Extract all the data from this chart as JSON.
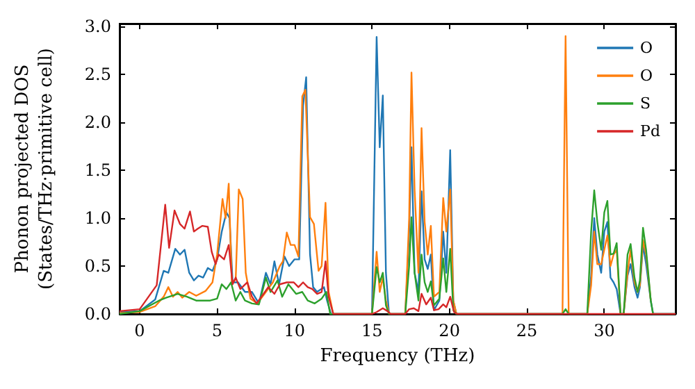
{
  "chart_data": {
    "type": "line",
    "xlabel": "Frequency (THz)",
    "ylabel": "Phonon projected DOS\n(States/THz·primitive cell)",
    "xlim": [
      -1.3,
      34.6
    ],
    "ylim": [
      0,
      3.03
    ],
    "xticks": [
      0,
      5,
      10,
      15,
      20,
      25,
      30
    ],
    "yticks": [
      {
        "value": 0,
        "label": "0.0"
      },
      0.5,
      {
        "value": 1,
        "label": "1.0"
      },
      1.5,
      {
        "value": 2,
        "label": "2.0"
      },
      2.5,
      {
        "value": 3,
        "label": "3.0"
      }
    ],
    "grid": false,
    "legend": "top right",
    "marker": "none",
    "line_style": "solid",
    "series": [
      {
        "name": "O",
        "color": "#1f77b4",
        "x": [
          -1.3,
          0,
          1,
          1.55,
          1.85,
          2.3,
          2.6,
          2.9,
          3.2,
          3.5,
          3.8,
          4.1,
          4.4,
          4.7,
          5.0,
          5.3,
          5.6,
          5.8,
          6.0,
          6.35,
          6.8,
          7.25,
          7.7,
          8.15,
          8.45,
          8.7,
          9.0,
          9.35,
          9.65,
          10.0,
          10.3,
          10.55,
          10.75,
          11.0,
          11.2,
          11.45,
          11.9,
          12.1,
          12.35,
          15.0,
          15.3,
          15.5,
          15.7,
          15.9,
          16.1,
          17.15,
          17.4,
          17.55,
          17.75,
          18.0,
          18.2,
          18.4,
          18.6,
          18.8,
          19.0,
          19.35,
          19.6,
          19.8,
          20.05,
          20.25,
          20.45,
          27.3,
          27.5,
          27.7,
          28.9,
          29.15,
          29.35,
          29.55,
          29.8,
          30.0,
          30.2,
          30.4,
          30.6,
          30.8,
          31.05,
          31.25,
          31.5,
          31.7,
          31.95,
          32.15,
          32.3,
          32.5,
          32.7,
          33.0,
          33.15,
          34.6
        ],
        "values": [
          0.02,
          0.03,
          0.15,
          0.45,
          0.43,
          0.68,
          0.62,
          0.67,
          0.43,
          0.35,
          0.4,
          0.38,
          0.48,
          0.45,
          0.57,
          0.86,
          1.06,
          1.0,
          0.33,
          0.33,
          0.23,
          0.23,
          0.11,
          0.43,
          0.31,
          0.55,
          0.31,
          0.6,
          0.5,
          0.57,
          0.57,
          2.17,
          2.47,
          0.62,
          0.28,
          0.23,
          0.28,
          0.14,
          0,
          0,
          2.89,
          1.74,
          2.28,
          0.43,
          0,
          0,
          0.86,
          1.74,
          0.43,
          0.23,
          1.28,
          0.57,
          0.47,
          0.62,
          0.04,
          0.14,
          0.86,
          0.43,
          1.71,
          0.14,
          0,
          0,
          null,
          0,
          0,
          0.4,
          1.0,
          0.62,
          0.43,
          0.86,
          0.96,
          0.38,
          0.33,
          0.26,
          0,
          0,
          0.4,
          0.52,
          0.28,
          0.17,
          0.28,
          0.72,
          0.52,
          0.14,
          0,
          0
        ]
      },
      {
        "name": "O",
        "color": "#ff7f0e",
        "x": [
          -1.3,
          0,
          1,
          1.55,
          1.85,
          2.15,
          2.45,
          2.75,
          3.2,
          3.65,
          4.25,
          4.7,
          5.0,
          5.35,
          5.55,
          5.75,
          5.95,
          6.2,
          6.4,
          6.65,
          6.85,
          7.15,
          7.6,
          8.15,
          8.6,
          9.05,
          9.25,
          9.5,
          9.75,
          10.0,
          10.25,
          10.5,
          10.7,
          11.0,
          11.25,
          11.55,
          11.75,
          12.0,
          12.2,
          12.5,
          15.0,
          15.3,
          15.5,
          15.7,
          15.9,
          16.1,
          17.15,
          17.4,
          17.55,
          17.75,
          18.0,
          18.2,
          18.4,
          18.6,
          18.8,
          19.0,
          19.35,
          19.6,
          19.8,
          20.05,
          20.25,
          20.45,
          27.3,
          27.5,
          27.7,
          28.9,
          29.15,
          29.35,
          29.55,
          29.8,
          30.0,
          30.2,
          30.4,
          30.6,
          30.8,
          31.05,
          31.25,
          31.5,
          31.7,
          31.95,
          32.15,
          32.3,
          32.5,
          32.7,
          33.0
        ],
        "values": [
          0.01,
          0.02,
          0.08,
          0.18,
          0.28,
          0.18,
          0.23,
          0.17,
          0.23,
          0.19,
          0.24,
          0.33,
          0.62,
          1.2,
          1.0,
          1.36,
          0.33,
          0.36,
          1.3,
          1.2,
          0.43,
          0.16,
          0.11,
          0.23,
          0.33,
          0.5,
          0.55,
          0.85,
          0.72,
          0.72,
          0.6,
          2.27,
          2.34,
          1.01,
          0.94,
          0.45,
          0.5,
          1.16,
          0.23,
          0,
          0,
          0.65,
          0.23,
          0.38,
          0.14,
          0,
          0,
          1.0,
          2.52,
          1.3,
          0.43,
          1.94,
          0.96,
          0.62,
          0.92,
          0.18,
          0.23,
          1.21,
          0.86,
          1.3,
          0.14,
          0,
          0,
          2.9,
          0,
          0,
          0.3,
          0.86,
          0.52,
          0.52,
          0.67,
          0.82,
          0.5,
          0.62,
          0.67,
          0,
          0,
          0.43,
          0.67,
          0.33,
          0.23,
          0.3,
          0.77,
          0.62,
          0.14
        ]
      },
      {
        "name": "S",
        "color": "#2ca02c",
        "x": [
          -1.3,
          0,
          1.25,
          1.7,
          2.45,
          3.05,
          3.65,
          4.55,
          5.0,
          5.3,
          5.6,
          5.9,
          6.2,
          6.5,
          6.8,
          7.25,
          7.7,
          8.15,
          8.45,
          8.9,
          9.2,
          9.6,
          10.1,
          10.5,
          10.85,
          11.3,
          11.75,
          12.05,
          12.3,
          15.0,
          15.3,
          15.5,
          15.7,
          15.9,
          16.1,
          17.15,
          17.4,
          17.55,
          17.75,
          18.0,
          18.2,
          18.4,
          18.6,
          18.8,
          19.0,
          19.35,
          19.6,
          19.8,
          20.05,
          20.25,
          20.45,
          27.3,
          27.5,
          27.7,
          28.9,
          29.15,
          29.35,
          29.55,
          29.8,
          30.0,
          30.2,
          30.4,
          30.6,
          30.8,
          31.05,
          31.25,
          31.5,
          31.7,
          31.95,
          32.15,
          32.3,
          32.5,
          32.7,
          33.0,
          33.15,
          34.6
        ],
        "values": [
          0,
          0.03,
          0.14,
          0.17,
          0.21,
          0.18,
          0.14,
          0.14,
          0.16,
          0.31,
          0.26,
          0.33,
          0.14,
          0.23,
          0.14,
          0.11,
          0.1,
          0.38,
          0.23,
          0.35,
          0.18,
          0.31,
          0.21,
          0.23,
          0.14,
          0.11,
          0.16,
          0.23,
          0,
          0,
          0.49,
          0.33,
          0.43,
          0.09,
          0,
          0,
          0.5,
          1.01,
          0.43,
          0.14,
          0.62,
          0.33,
          0.23,
          0.34,
          0.09,
          0.16,
          0.58,
          0.23,
          0.68,
          0.04,
          0,
          0,
          0.05,
          0,
          0,
          0.86,
          1.29,
          0.96,
          0.67,
          1.06,
          1.18,
          0.62,
          0.63,
          0.74,
          0,
          0,
          0.62,
          0.73,
          0.38,
          0.23,
          0.35,
          0.9,
          0.67,
          0.14,
          0,
          0
        ]
      },
      {
        "name": "Pd",
        "color": "#d62728",
        "x": [
          -1.3,
          0,
          1.1,
          1.65,
          1.9,
          2.25,
          2.6,
          2.9,
          3.25,
          3.5,
          3.75,
          4.05,
          4.4,
          4.65,
          4.9,
          5.1,
          5.45,
          5.75,
          6.0,
          6.2,
          6.5,
          6.95,
          7.25,
          7.55,
          8.0,
          8.3,
          8.7,
          9.05,
          9.5,
          9.95,
          10.25,
          10.55,
          10.85,
          11.15,
          11.45,
          11.75,
          12.0,
          12.2,
          12.5,
          15.0,
          15.3,
          15.7,
          16.0,
          16.2,
          17.15,
          17.4,
          17.7,
          18.0,
          18.2,
          18.5,
          18.8,
          19.0,
          19.3,
          19.6,
          19.8,
          20.05,
          20.3,
          20.5,
          34.6
        ],
        "values": [
          0.03,
          0.05,
          0.3,
          1.14,
          0.69,
          1.08,
          0.94,
          0.89,
          1.07,
          0.86,
          0.89,
          0.92,
          0.91,
          0.65,
          0.52,
          0.62,
          0.57,
          0.72,
          0.31,
          0.38,
          0.26,
          0.33,
          0.18,
          0.11,
          0.21,
          0.28,
          0.21,
          0.31,
          0.33,
          0.33,
          0.28,
          0.33,
          0.28,
          0.26,
          0.21,
          0.23,
          0.55,
          0.18,
          0,
          0,
          0.02,
          0.06,
          0.03,
          0,
          0,
          0.05,
          0.06,
          0.03,
          0.21,
          0.1,
          0.17,
          0.04,
          0.05,
          0.1,
          0.07,
          0.18,
          0.02,
          0,
          0
        ]
      }
    ]
  }
}
